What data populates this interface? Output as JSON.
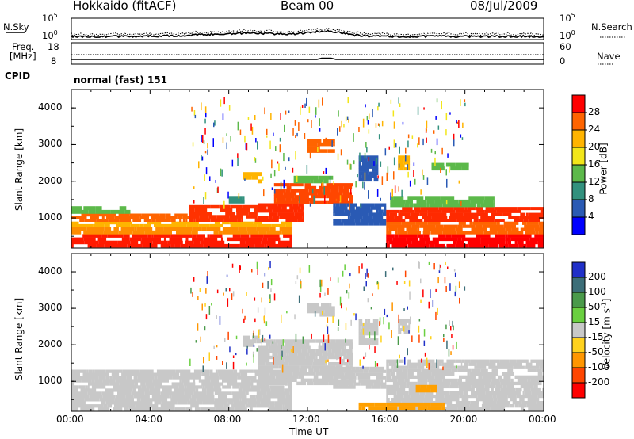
{
  "header": {
    "title": "Hokkaido (fitACF)",
    "beam": "Beam 00",
    "date": "08/Jul/2009"
  },
  "noise_panel": {
    "left_label": "N.Sky",
    "right_label": "N.Search",
    "left_ticks": [
      "10^5",
      "10^0"
    ],
    "right_ticks": [
      "10^5",
      "10^0"
    ]
  },
  "freq_panel": {
    "left_label_line1": "Freq.",
    "left_label_line2": "[MHz]",
    "right_label": "Nave",
    "left_ticks": [
      "18",
      "8"
    ],
    "right_ticks": [
      "60",
      "0"
    ]
  },
  "cpid": {
    "label": "CPID",
    "value": "normal (fast) 151"
  },
  "x_axis": {
    "label": "Time UT",
    "ticks": [
      "00:00",
      "04:00",
      "08:00",
      "12:00",
      "16:00",
      "20:00",
      "00:00"
    ]
  },
  "chart_data": [
    {
      "type": "heatmap",
      "name": "power",
      "ylabel": "Slant Range [km]",
      "yticks": [
        "1000",
        "2000",
        "3000",
        "4000"
      ],
      "ylim": [
        180,
        4500
      ],
      "xlim_hours": [
        0,
        24
      ],
      "colorbar": {
        "label": "Power [dB]",
        "ticks": [
          "4",
          "8",
          "12",
          "16",
          "20",
          "24",
          "28"
        ],
        "range": [
          0,
          32
        ],
        "colors": [
          "#0000ff",
          "#2a5ab4",
          "#32917e",
          "#5cb94a",
          "#f2e61a",
          "#ffb400",
          "#ff6400",
          "#ff0000"
        ]
      },
      "regions": [
        {
          "t0": 0.0,
          "t1": 11.2,
          "r0": 200,
          "r1": 560,
          "color": "#ff1a00"
        },
        {
          "t0": 0.0,
          "t1": 11.2,
          "r0": 560,
          "r1": 760,
          "color": "#ff8c00"
        },
        {
          "t0": 0.0,
          "t1": 11.2,
          "r0": 760,
          "r1": 900,
          "color": "#ffb400"
        },
        {
          "t0": 0.0,
          "t1": 6.0,
          "r0": 900,
          "r1": 1120,
          "color": "#ff6400"
        },
        {
          "t0": 0.0,
          "t1": 3.0,
          "r0": 1120,
          "r1": 1320,
          "color": "#5cb94a"
        },
        {
          "t0": 6.0,
          "t1": 9.5,
          "r0": 900,
          "r1": 1350,
          "color": "#ff3200"
        },
        {
          "t0": 9.5,
          "t1": 11.8,
          "r0": 900,
          "r1": 1400,
          "color": "#ff2a00"
        },
        {
          "t0": 10.3,
          "t1": 14.3,
          "r0": 1380,
          "r1": 1950,
          "color": "#ff4600"
        },
        {
          "t0": 11.3,
          "t1": 13.3,
          "r0": 1950,
          "r1": 2150,
          "color": "#5cb94a"
        },
        {
          "t0": 13.3,
          "t1": 16.0,
          "r0": 800,
          "r1": 1400,
          "color": "#2a5ab4"
        },
        {
          "t0": 14.6,
          "t1": 15.6,
          "r0": 2000,
          "r1": 2700,
          "color": "#2a5ab4"
        },
        {
          "t0": 12.0,
          "t1": 13.4,
          "r0": 2780,
          "r1": 3150,
          "color": "#ff6400"
        },
        {
          "t0": 16.0,
          "t1": 24.0,
          "r0": 200,
          "r1": 560,
          "color": "#ff0000"
        },
        {
          "t0": 16.0,
          "t1": 24.0,
          "r0": 560,
          "r1": 900,
          "color": "#ff6400"
        },
        {
          "t0": 16.0,
          "t1": 24.0,
          "r0": 900,
          "r1": 1300,
          "color": "#ff2a00"
        },
        {
          "t0": 16.2,
          "t1": 21.5,
          "r0": 1300,
          "r1": 1600,
          "color": "#5cb94a"
        },
        {
          "t0": 16.6,
          "t1": 17.2,
          "r0": 2300,
          "r1": 2700,
          "color": "#ffb400"
        },
        {
          "t0": 8.7,
          "t1": 9.7,
          "r0": 1950,
          "r1": 2250,
          "color": "#ffb400"
        },
        {
          "t0": 8.0,
          "t1": 8.8,
          "r0": 1400,
          "r1": 1600,
          "color": "#32917e"
        },
        {
          "t0": 18.3,
          "t1": 20.2,
          "r0": 2300,
          "r1": 2500,
          "color": "#5cb94a"
        }
      ]
    },
    {
      "type": "heatmap",
      "name": "velocity",
      "ylabel": "Slant Range [km]",
      "yticks": [
        "1000",
        "2000",
        "3000",
        "4000"
      ],
      "ylim": [
        180,
        4500
      ],
      "xlim_hours": [
        0,
        24
      ],
      "colorbar": {
        "label": "Velocity [m s^-1]",
        "ticks": [
          "200",
          "100",
          "50",
          "15",
          "-15",
          "-50",
          "-100",
          "-200"
        ],
        "colors": [
          "#2030c8",
          "#3c6e78",
          "#4a9a4a",
          "#6ad040",
          "#c8c8c8",
          "#ffd21e",
          "#ff9600",
          "#ff4600",
          "#ff0000"
        ]
      },
      "regions": [
        {
          "t0": 0.0,
          "t1": 11.2,
          "r0": 200,
          "r1": 1320,
          "color": "#c8c8c8"
        },
        {
          "t0": 9.5,
          "t1": 14.3,
          "r0": 900,
          "r1": 2150,
          "color": "#c8c8c8"
        },
        {
          "t0": 13.3,
          "t1": 16.0,
          "r0": 800,
          "r1": 1400,
          "color": "#c8c8c8"
        },
        {
          "t0": 14.6,
          "t1": 15.6,
          "r0": 2000,
          "r1": 2700,
          "color": "#c8c8c8"
        },
        {
          "t0": 12.0,
          "t1": 13.4,
          "r0": 2780,
          "r1": 3150,
          "color": "#c8c8c8"
        },
        {
          "t0": 16.0,
          "t1": 24.0,
          "r0": 200,
          "r1": 1600,
          "color": "#c8c8c8"
        },
        {
          "t0": 14.6,
          "t1": 19.0,
          "r0": 220,
          "r1": 420,
          "color": "#ffa000"
        },
        {
          "t0": 17.5,
          "t1": 18.6,
          "r0": 700,
          "r1": 900,
          "color": "#ffa000"
        },
        {
          "t0": 8.7,
          "t1": 9.7,
          "r0": 1950,
          "r1": 2250,
          "color": "#c8c8c8"
        },
        {
          "t0": 16.6,
          "t1": 17.2,
          "r0": 2300,
          "r1": 2700,
          "color": "#c8c8c8"
        }
      ]
    }
  ]
}
